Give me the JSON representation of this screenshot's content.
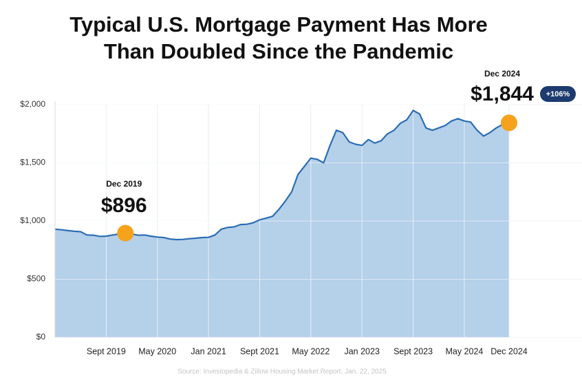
{
  "chart_data": {
    "type": "area",
    "title": [
      "Typical U.S. Mortgage Payment Has More",
      "Than Doubled Since the Pandemic"
    ],
    "source": "Source: Investopedia & Zillow Housing Market Report, Jan. 22, 2025",
    "categories": [
      null,
      null,
      null,
      null,
      null,
      null,
      null,
      null,
      "Sept 2019",
      null,
      null,
      null,
      null,
      null,
      null,
      null,
      "May 2020",
      null,
      null,
      null,
      null,
      null,
      null,
      null,
      "Jan 2021",
      null,
      null,
      null,
      null,
      null,
      null,
      null,
      "Sept 2021",
      null,
      null,
      null,
      null,
      null,
      null,
      null,
      "May 2022",
      null,
      null,
      null,
      null,
      null,
      null,
      null,
      "Jan 2023",
      null,
      null,
      null,
      null,
      null,
      null,
      null,
      "Sept 2023",
      null,
      null,
      null,
      null,
      null,
      null,
      null,
      "May 2024",
      null,
      null,
      null,
      null,
      null,
      null,
      "Dec 2024"
    ],
    "values": [
      930,
      925,
      918,
      912,
      908,
      880,
      878,
      868,
      870,
      880,
      888,
      896,
      888,
      878,
      880,
      870,
      862,
      858,
      845,
      840,
      842,
      848,
      852,
      858,
      860,
      880,
      930,
      945,
      950,
      970,
      972,
      985,
      1010,
      1025,
      1040,
      1100,
      1170,
      1250,
      1400,
      1470,
      1540,
      1530,
      1500,
      1650,
      1780,
      1760,
      1680,
      1660,
      1650,
      1700,
      1670,
      1690,
      1750,
      1780,
      1840,
      1870,
      1950,
      1920,
      1800,
      1780,
      1800,
      1820,
      1860,
      1880,
      1860,
      1850,
      1780,
      1730,
      1760,
      1800,
      1830,
      1844
    ],
    "value_labels": [
      null,
      null,
      null,
      null,
      null,
      null,
      null,
      null,
      null,
      null,
      null,
      "$896",
      null,
      null,
      null,
      null,
      null,
      null,
      null,
      null,
      null,
      null,
      null,
      null,
      null,
      null,
      null,
      null,
      null,
      null,
      null,
      null,
      null,
      null,
      null,
      null,
      null,
      null,
      null,
      null,
      null,
      null,
      null,
      null,
      null,
      null,
      null,
      null,
      null,
      null,
      null,
      null,
      null,
      null,
      null,
      null,
      null,
      null,
      null,
      null,
      null,
      null,
      null,
      null,
      null,
      null,
      null,
      null,
      null,
      null,
      null,
      "$1,844"
    ],
    "highlight_dates": [
      null,
      null,
      null,
      null,
      null,
      null,
      null,
      null,
      null,
      null,
      null,
      "Dec 2019",
      null,
      null,
      null,
      null,
      null,
      null,
      null,
      null,
      null,
      null,
      null,
      null,
      null,
      null,
      null,
      null,
      null,
      null,
      null,
      null,
      null,
      null,
      null,
      null,
      null,
      null,
      null,
      null,
      null,
      null,
      null,
      null,
      null,
      null,
      null,
      null,
      null,
      null,
      null,
      null,
      null,
      null,
      null,
      null,
      null,
      null,
      null,
      null,
      null,
      null,
      null,
      null,
      null,
      null,
      null,
      null,
      null,
      null,
      null,
      "Dec 2024"
    ],
    "change_label": "+106%",
    "color": "#2a6db5",
    "area_color": "#b5d0e9",
    "marker_color": "#f7a21b",
    "badge_color": "#1d3b6f",
    "ylim": [
      0,
      2000
    ],
    "yticks": [
      {
        "value": 0,
        "label": "$0"
      },
      {
        "value": 500,
        "label": "$500"
      },
      {
        "value": 1000,
        "label": "$1,000"
      },
      {
        "value": 1500,
        "label": "$1,500"
      },
      {
        "value": 2000,
        "label": "$2,000"
      }
    ],
    "grid": true
  }
}
